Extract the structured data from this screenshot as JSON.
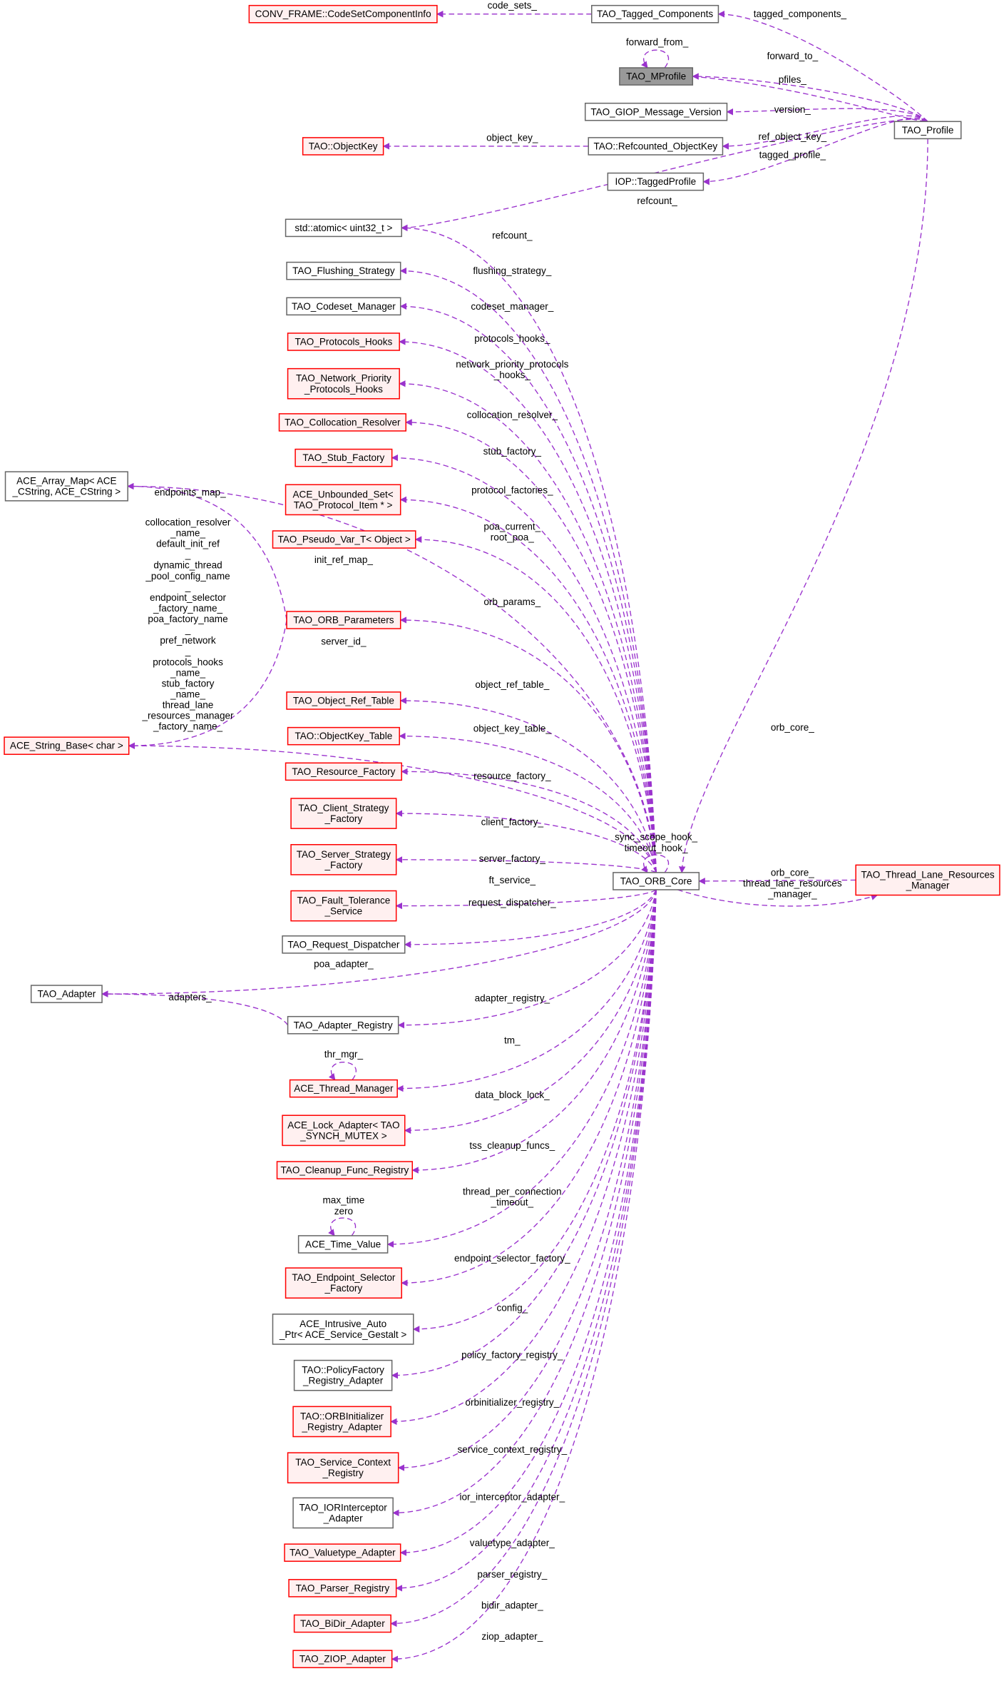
{
  "colors": {
    "edge": "#9a32cd",
    "incomplete_border": "#ff0000",
    "incomplete_fill": "#fff0f0",
    "plain_border": "#666666",
    "focus_fill": "#999999"
  },
  "nodes": [
    {
      "id": "conv",
      "label": [
        "CONV_FRAME::CodeSetComponentInfo"
      ],
      "style": "red"
    },
    {
      "id": "tagged",
      "label": [
        "TAO_Tagged_Components"
      ],
      "style": "gray"
    },
    {
      "id": "mprofile",
      "label": [
        "TAO_MProfile"
      ],
      "style": "highlight"
    },
    {
      "id": "giop",
      "label": [
        "TAO_GIOP_Message_Version"
      ],
      "style": "gray"
    },
    {
      "id": "profile",
      "label": [
        "TAO_Profile"
      ],
      "style": "gray"
    },
    {
      "id": "objkey",
      "label": [
        "TAO::ObjectKey"
      ],
      "style": "red"
    },
    {
      "id": "refobjkey",
      "label": [
        "TAO::Refcounted_ObjectKey"
      ],
      "style": "gray"
    },
    {
      "id": "iop",
      "label": [
        "IOP::TaggedProfile"
      ],
      "style": "gray"
    },
    {
      "id": "atomic",
      "label": [
        "std::atomic< uint32_t >"
      ],
      "style": "gray"
    },
    {
      "id": "flush",
      "label": [
        "TAO_Flushing_Strategy"
      ],
      "style": "gray"
    },
    {
      "id": "codeset",
      "label": [
        "TAO_Codeset_Manager"
      ],
      "style": "gray"
    },
    {
      "id": "phooks",
      "label": [
        "TAO_Protocols_Hooks"
      ],
      "style": "red"
    },
    {
      "id": "nphooks",
      "label": [
        "TAO_Network_Priority",
        "_Protocols_Hooks"
      ],
      "style": "red"
    },
    {
      "id": "colres",
      "label": [
        "TAO_Collocation_Resolver"
      ],
      "style": "red"
    },
    {
      "id": "stubf",
      "label": [
        "TAO_Stub_Factory"
      ],
      "style": "red"
    },
    {
      "id": "uset",
      "label": [
        "ACE_Unbounded_Set<",
        "TAO_Protocol_Item * >"
      ],
      "style": "red"
    },
    {
      "id": "pseudo",
      "label": [
        "TAO_Pseudo_Var_T< Object >"
      ],
      "style": "red"
    },
    {
      "id": "amap",
      "label": [
        "ACE_Array_Map< ACE",
        "_CString, ACE_CString >"
      ],
      "style": "gray"
    },
    {
      "id": "orbparams",
      "label": [
        "TAO_ORB_Parameters"
      ],
      "style": "red"
    },
    {
      "id": "strbase",
      "label": [
        "ACE_String_Base< char >"
      ],
      "style": "red"
    },
    {
      "id": "objref",
      "label": [
        "TAO_Object_Ref_Table"
      ],
      "style": "red"
    },
    {
      "id": "okt",
      "label": [
        "TAO::ObjectKey_Table"
      ],
      "style": "red"
    },
    {
      "id": "resf",
      "label": [
        "TAO_Resource_Factory"
      ],
      "style": "red"
    },
    {
      "id": "clientf",
      "label": [
        "TAO_Client_Strategy",
        "_Factory"
      ],
      "style": "red"
    },
    {
      "id": "serverf",
      "label": [
        "TAO_Server_Strategy",
        "_Factory"
      ],
      "style": "red"
    },
    {
      "id": "ft",
      "label": [
        "TAO_Fault_Tolerance",
        "_Service"
      ],
      "style": "red"
    },
    {
      "id": "reqd",
      "label": [
        "TAO_Request_Dispatcher"
      ],
      "style": "gray"
    },
    {
      "id": "adapter",
      "label": [
        "TAO_Adapter"
      ],
      "style": "gray"
    },
    {
      "id": "adreg",
      "label": [
        "TAO_Adapter_Registry"
      ],
      "style": "gray"
    },
    {
      "id": "thrmgr",
      "label": [
        "ACE_Thread_Manager"
      ],
      "style": "red"
    },
    {
      "id": "lock",
      "label": [
        "ACE_Lock_Adapter< TAO",
        "_SYNCH_MUTEX >"
      ],
      "style": "red"
    },
    {
      "id": "cleanup",
      "label": [
        "TAO_Cleanup_Func_Registry"
      ],
      "style": "red"
    },
    {
      "id": "timev",
      "label": [
        "ACE_Time_Value"
      ],
      "style": "gray"
    },
    {
      "id": "esf",
      "label": [
        "TAO_Endpoint_Selector",
        "_Factory"
      ],
      "style": "red"
    },
    {
      "id": "iap",
      "label": [
        "ACE_Intrusive_Auto",
        "_Ptr< ACE_Service_Gestalt >"
      ],
      "style": "gray"
    },
    {
      "id": "pfra",
      "label": [
        "TAO::PolicyFactory",
        "_Registry_Adapter"
      ],
      "style": "gray"
    },
    {
      "id": "orbi",
      "label": [
        "TAO::ORBInitializer",
        "_Registry_Adapter"
      ],
      "style": "red"
    },
    {
      "id": "scr",
      "label": [
        "TAO_Service_Context",
        "_Registry"
      ],
      "style": "red"
    },
    {
      "id": "iori",
      "label": [
        "TAO_IORInterceptor",
        "_Adapter"
      ],
      "style": "gray"
    },
    {
      "id": "vta",
      "label": [
        "TAO_Valuetype_Adapter"
      ],
      "style": "red"
    },
    {
      "id": "parser",
      "label": [
        "TAO_Parser_Registry"
      ],
      "style": "red"
    },
    {
      "id": "bidir",
      "label": [
        "TAO_BiDir_Adapter"
      ],
      "style": "red"
    },
    {
      "id": "ziop",
      "label": [
        "TAO_ZIOP_Adapter"
      ],
      "style": "red"
    },
    {
      "id": "core",
      "label": [
        "TAO_ORB_Core"
      ],
      "style": "gray"
    },
    {
      "id": "tlrm",
      "label": [
        "TAO_Thread_Lane_Resources",
        "_Manager"
      ],
      "style": "red"
    }
  ],
  "edges": [
    {
      "from": "tagged",
      "to": "conv",
      "label": [
        "code_sets_"
      ]
    },
    {
      "from": "profile",
      "to": "tagged",
      "label": [
        "tagged_components_"
      ]
    },
    {
      "from": "mprofile",
      "to": "mprofile",
      "label": [
        "forward_from_"
      ]
    },
    {
      "from": "profile",
      "to": "mprofile",
      "label": [
        "forward_to_"
      ]
    },
    {
      "from": "mprofile",
      "to": "profile",
      "label": [
        "pfiles_"
      ]
    },
    {
      "from": "profile",
      "to": "giop",
      "label": [
        "version_"
      ]
    },
    {
      "from": "refobjkey",
      "to": "objkey",
      "label": [
        "object_key_"
      ]
    },
    {
      "from": "profile",
      "to": "refobjkey",
      "label": [
        "ref_object_key_"
      ]
    },
    {
      "from": "profile",
      "to": "iop",
      "label": [
        "tagged_profile_"
      ]
    },
    {
      "from": "profile",
      "to": "atomic",
      "label": [
        "refcount_"
      ]
    },
    {
      "from": "profile",
      "to": "core",
      "label": [
        "orb_core_"
      ]
    },
    {
      "from": "core",
      "to": "atomic",
      "label": [
        "refcount_"
      ]
    },
    {
      "from": "core",
      "to": "flush",
      "label": [
        "flushing_strategy_"
      ]
    },
    {
      "from": "core",
      "to": "codeset",
      "label": [
        "codeset_manager_"
      ]
    },
    {
      "from": "core",
      "to": "phooks",
      "label": [
        "protocols_hooks_"
      ]
    },
    {
      "from": "core",
      "to": "nphooks",
      "label": [
        "network_priority_protocols",
        "_hooks_"
      ]
    },
    {
      "from": "core",
      "to": "colres",
      "label": [
        "collocation_resolver_"
      ]
    },
    {
      "from": "core",
      "to": "stubf",
      "label": [
        "stub_factory_"
      ]
    },
    {
      "from": "core",
      "to": "uset",
      "label": [
        "protocol_factories_"
      ]
    },
    {
      "from": "core",
      "to": "pseudo",
      "label": [
        "poa_current_",
        "root_poa_"
      ]
    },
    {
      "from": "core",
      "to": "amap",
      "label": [
        "init_ref_map_"
      ]
    },
    {
      "from": "orbparams",
      "to": "amap",
      "label": [
        "endpoints_map_"
      ]
    },
    {
      "from": "orbparams",
      "to": "strbase",
      "label": [
        "collocation_resolver",
        "_name_",
        "default_init_ref",
        "_",
        "dynamic_thread",
        "_pool_config_name",
        "_",
        "endpoint_selector",
        "_factory_name_",
        "poa_factory_name",
        "_",
        "pref_network",
        "_",
        "protocols_hooks",
        "_name_",
        "stub_factory",
        "_name_",
        "thread_lane",
        "_resources_manager",
        "_factory_name_"
      ]
    },
    {
      "from": "core",
      "to": "orbparams",
      "label": [
        "orb_params_"
      ]
    },
    {
      "from": "core",
      "to": "strbase",
      "label": [
        "server_id_"
      ]
    },
    {
      "from": "core",
      "to": "objref",
      "label": [
        "object_ref_table_"
      ]
    },
    {
      "from": "core",
      "to": "okt",
      "label": [
        "object_key_table_"
      ]
    },
    {
      "from": "core",
      "to": "resf",
      "label": [
        "resource_factory_"
      ]
    },
    {
      "from": "core",
      "to": "clientf",
      "label": [
        "client_factory_"
      ]
    },
    {
      "from": "core",
      "to": "serverf",
      "label": [
        "server_factory_"
      ]
    },
    {
      "from": "core",
      "to": "ft",
      "label": [
        "ft_service_"
      ]
    },
    {
      "from": "core",
      "to": "reqd",
      "label": [
        "request_dispatcher_"
      ]
    },
    {
      "from": "core",
      "to": "adapter",
      "label": [
        "poa_adapter_"
      ]
    },
    {
      "from": "adreg",
      "to": "adapter",
      "label": [
        "adapters_"
      ]
    },
    {
      "from": "core",
      "to": "adreg",
      "label": [
        "adapter_registry_"
      ]
    },
    {
      "from": "thrmgr",
      "to": "thrmgr",
      "label": [
        "thr_mgr_"
      ]
    },
    {
      "from": "core",
      "to": "thrmgr",
      "label": [
        "tm_"
      ]
    },
    {
      "from": "core",
      "to": "lock",
      "label": [
        "data_block_lock_"
      ]
    },
    {
      "from": "core",
      "to": "cleanup",
      "label": [
        "tss_cleanup_funcs_"
      ]
    },
    {
      "from": "timev",
      "to": "timev",
      "label": [
        "max_time",
        "zero"
      ]
    },
    {
      "from": "core",
      "to": "timev",
      "label": [
        "thread_per_connection",
        "_timeout_"
      ]
    },
    {
      "from": "core",
      "to": "esf",
      "label": [
        "endpoint_selector_factory_"
      ]
    },
    {
      "from": "core",
      "to": "iap",
      "label": [
        "config_"
      ]
    },
    {
      "from": "core",
      "to": "pfra",
      "label": [
        "policy_factory_registry_"
      ]
    },
    {
      "from": "core",
      "to": "orbi",
      "label": [
        "orbinitializer_registry_"
      ]
    },
    {
      "from": "core",
      "to": "scr",
      "label": [
        "service_context_registry_"
      ]
    },
    {
      "from": "core",
      "to": "iori",
      "label": [
        "ior_interceptor_adapter_"
      ]
    },
    {
      "from": "core",
      "to": "vta",
      "label": [
        "valuetype_adapter_"
      ]
    },
    {
      "from": "core",
      "to": "parser",
      "label": [
        "parser_registry_"
      ]
    },
    {
      "from": "core",
      "to": "bidir",
      "label": [
        "bidir_adapter_"
      ]
    },
    {
      "from": "core",
      "to": "ziop",
      "label": [
        "ziop_adapter_"
      ]
    },
    {
      "from": "core",
      "to": "core",
      "label": [
        "sync_scope_hook_",
        "timeout_hook_"
      ]
    },
    {
      "from": "tlrm",
      "to": "core",
      "label": [
        "orb_core_",
        "thread_lane_resources",
        "_manager_"
      ]
    },
    {
      "from": "core",
      "to": "tlrm",
      "label": []
    }
  ]
}
